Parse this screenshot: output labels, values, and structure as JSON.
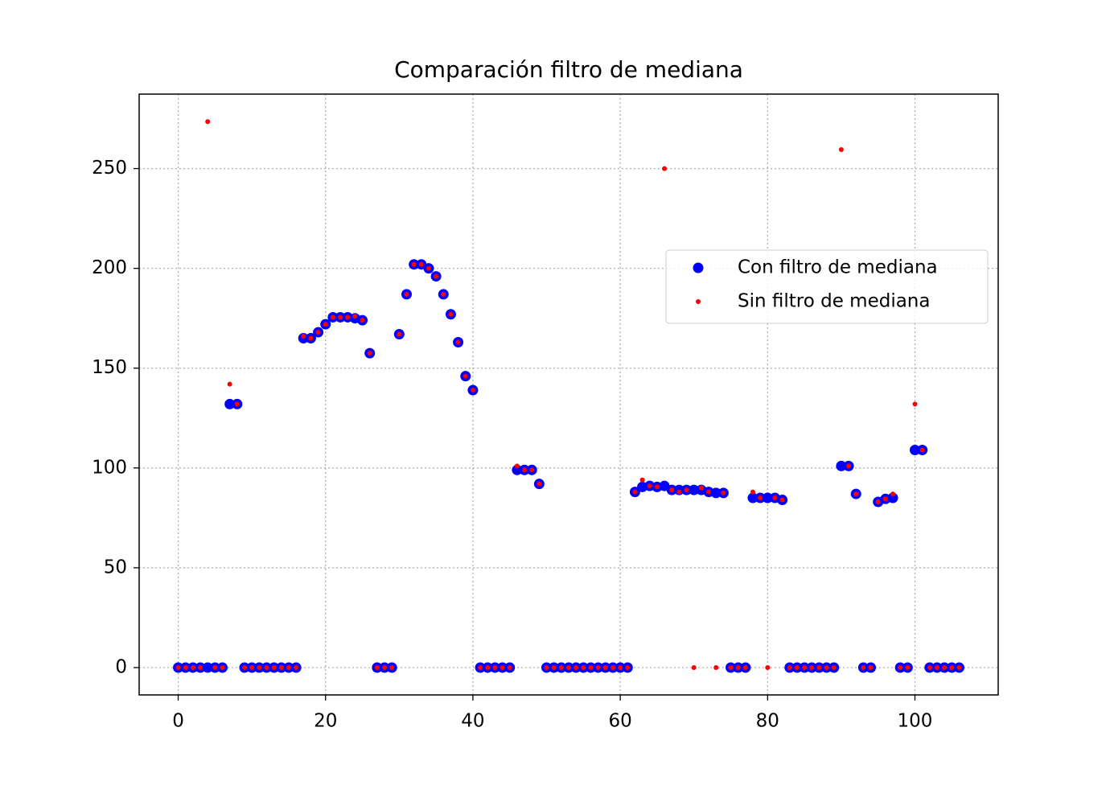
{
  "chart_data": {
    "type": "scatter",
    "title": "Comparación filtro de mediana",
    "x": [
      0,
      1,
      2,
      3,
      4,
      5,
      6,
      7,
      8,
      9,
      10,
      11,
      12,
      13,
      14,
      15,
      16,
      17,
      18,
      19,
      20,
      21,
      22,
      23,
      24,
      25,
      26,
      27,
      28,
      29,
      30,
      31,
      32,
      33,
      34,
      35,
      36,
      37,
      38,
      39,
      40,
      41,
      42,
      43,
      44,
      45,
      46,
      47,
      48,
      49,
      50,
      51,
      52,
      53,
      54,
      55,
      56,
      57,
      58,
      59,
      60,
      61,
      62,
      63,
      64,
      65,
      66,
      67,
      68,
      69,
      70,
      71,
      72,
      73,
      74,
      75,
      76,
      77,
      78,
      79,
      80,
      81,
      82,
      83,
      84,
      85,
      86,
      87,
      88,
      89,
      90,
      91,
      92,
      93,
      94,
      95,
      96,
      97,
      98,
      99,
      100,
      101,
      102,
      103,
      104,
      105,
      106
    ],
    "series": [
      {
        "name": "Con filtro de mediana",
        "color": "#0000ff",
        "values": [
          0,
          0,
          0,
          0,
          0,
          0,
          0,
          132,
          132,
          0,
          0,
          0,
          0,
          0,
          0,
          0,
          0,
          165,
          165,
          168,
          172,
          175.5,
          175.5,
          175.5,
          175,
          174,
          157.5,
          0,
          0,
          0,
          167,
          187,
          202,
          202,
          200,
          196,
          187,
          177,
          163,
          146,
          139,
          0,
          0,
          0,
          0,
          0,
          99,
          99,
          99,
          92,
          0,
          0,
          0,
          0,
          0,
          0,
          0,
          0,
          0,
          0,
          0,
          0,
          88,
          90.5,
          91,
          90.5,
          91,
          89,
          89,
          89,
          89,
          89,
          88,
          87.5,
          87.5,
          0,
          0,
          0,
          85,
          85,
          85,
          85,
          84,
          0,
          0,
          0,
          0,
          0,
          0,
          0,
          101,
          101,
          87,
          0,
          0,
          83,
          84.5,
          85,
          0,
          0,
          109,
          109,
          0,
          0,
          0,
          0,
          0
        ]
      },
      {
        "name": "Sin filtro de mediana",
        "color": "#ff0000",
        "values": [
          0,
          0,
          0,
          0,
          273.5,
          0,
          0,
          142,
          132,
          0,
          0,
          0,
          0,
          0,
          0,
          0,
          0,
          166,
          165,
          168,
          172,
          175.5,
          175.5,
          175.5,
          176,
          174,
          157.5,
          0,
          0,
          0,
          167,
          187,
          202,
          202,
          200,
          196,
          187,
          177,
          163,
          146,
          139,
          0,
          0,
          0,
          0,
          0,
          101,
          99,
          99,
          92,
          0,
          0,
          0,
          0,
          0,
          0,
          0,
          0,
          0,
          0,
          0,
          0,
          88,
          94,
          91,
          90.5,
          250,
          89,
          88,
          89,
          0,
          90,
          88,
          0,
          87.5,
          0,
          0,
          0,
          88,
          85,
          0,
          85,
          84,
          0,
          0,
          0,
          0,
          0,
          0,
          0,
          259.5,
          101,
          87,
          0,
          0,
          83,
          84.5,
          87,
          0,
          0,
          132,
          109,
          0,
          0,
          0,
          0,
          0
        ]
      }
    ],
    "xlim": [
      -5.3,
      111.3
    ],
    "ylim": [
      -13.7,
      287.3
    ],
    "xticks": [
      0,
      20,
      40,
      60,
      80,
      100
    ],
    "yticks": [
      0,
      50,
      100,
      150,
      200,
      250
    ],
    "grid": true,
    "legend": "center right"
  }
}
